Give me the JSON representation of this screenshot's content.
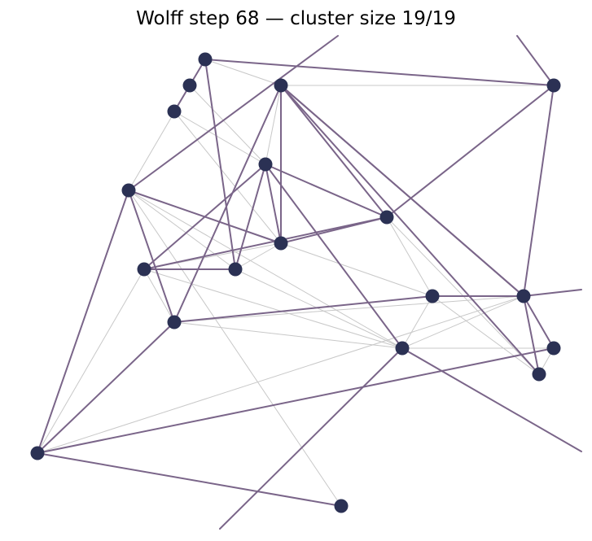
{
  "title": "Wolff step 68 — cluster size 19/19",
  "colors": {
    "node": "#2b3154",
    "cluster_edge": "#7a6589",
    "plain_edge": "#c8c8c8",
    "background": "#ffffff"
  },
  "graph": {
    "nodes": [
      {
        "id": "n1"
      },
      {
        "id": "n2"
      },
      {
        "id": "n3"
      },
      {
        "id": "n4"
      },
      {
        "id": "n5"
      },
      {
        "id": "n6"
      },
      {
        "id": "n7"
      },
      {
        "id": "n8"
      },
      {
        "id": "n9"
      },
      {
        "id": "n10"
      },
      {
        "id": "n11"
      },
      {
        "id": "n12"
      },
      {
        "id": "n13"
      },
      {
        "id": "n14"
      },
      {
        "id": "n15"
      },
      {
        "id": "n16"
      },
      {
        "id": "n17"
      },
      {
        "id": "n18"
      },
      {
        "id": "n19"
      }
    ],
    "cluster_edges": [
      [
        "n1",
        "n4"
      ],
      [
        "n1",
        "n2"
      ],
      [
        "n2",
        "n3"
      ],
      [
        "n5",
        "n8"
      ],
      [
        "n5",
        "n14"
      ],
      [
        "n5",
        "n19"
      ],
      [
        "n6",
        "n9"
      ],
      [
        "n6",
        "n10"
      ],
      [
        "n7",
        "n12"
      ],
      [
        "n7",
        "n16"
      ],
      [
        "n8",
        "n11"
      ],
      [
        "n11",
        "n10"
      ],
      [
        "n13",
        "n14"
      ],
      [
        "n16",
        "n17"
      ],
      [
        "n16",
        "n18"
      ],
      [
        "n15",
        "n6"
      ],
      [
        "n12",
        "n16"
      ]
    ],
    "cluster_edges_wrapping": [
      [
        "n7",
        "top"
      ],
      [
        "n18",
        "top"
      ],
      [
        "n17",
        "right"
      ],
      [
        "n15",
        "right"
      ],
      [
        "n15",
        "bottom"
      ]
    ],
    "plain_edges": [
      [
        "n1",
        "n5"
      ],
      [
        "n1",
        "n7"
      ],
      [
        "n4",
        "n5"
      ],
      [
        "n3",
        "n6"
      ],
      [
        "n3",
        "n8"
      ],
      [
        "n2",
        "n6"
      ],
      [
        "n8",
        "n6"
      ],
      [
        "n8",
        "n11"
      ],
      [
        "n8",
        "n9"
      ],
      [
        "n8",
        "n13"
      ],
      [
        "n8",
        "n10"
      ],
      [
        "n9",
        "n10"
      ],
      [
        "n9",
        "n15"
      ],
      [
        "n10",
        "n12"
      ],
      [
        "n10",
        "n15"
      ],
      [
        "n11",
        "n13"
      ],
      [
        "n11",
        "n19"
      ],
      [
        "n13",
        "n15"
      ],
      [
        "n15",
        "n14"
      ],
      [
        "n15",
        "n18"
      ],
      [
        "n14",
        "n16"
      ],
      [
        "n14",
        "n19"
      ],
      [
        "n16",
        "n17"
      ],
      [
        "n7",
        "n17"
      ],
      [
        "n7",
        "n15"
      ],
      [
        "n5",
        "n6"
      ],
      [
        "n7",
        "n9"
      ],
      [
        "n12",
        "n14"
      ],
      [
        "n12",
        "n15"
      ],
      [
        "n13",
        "n20"
      ],
      [
        "n19",
        "n18"
      ],
      [
        "n10",
        "n16"
      ]
    ]
  }
}
